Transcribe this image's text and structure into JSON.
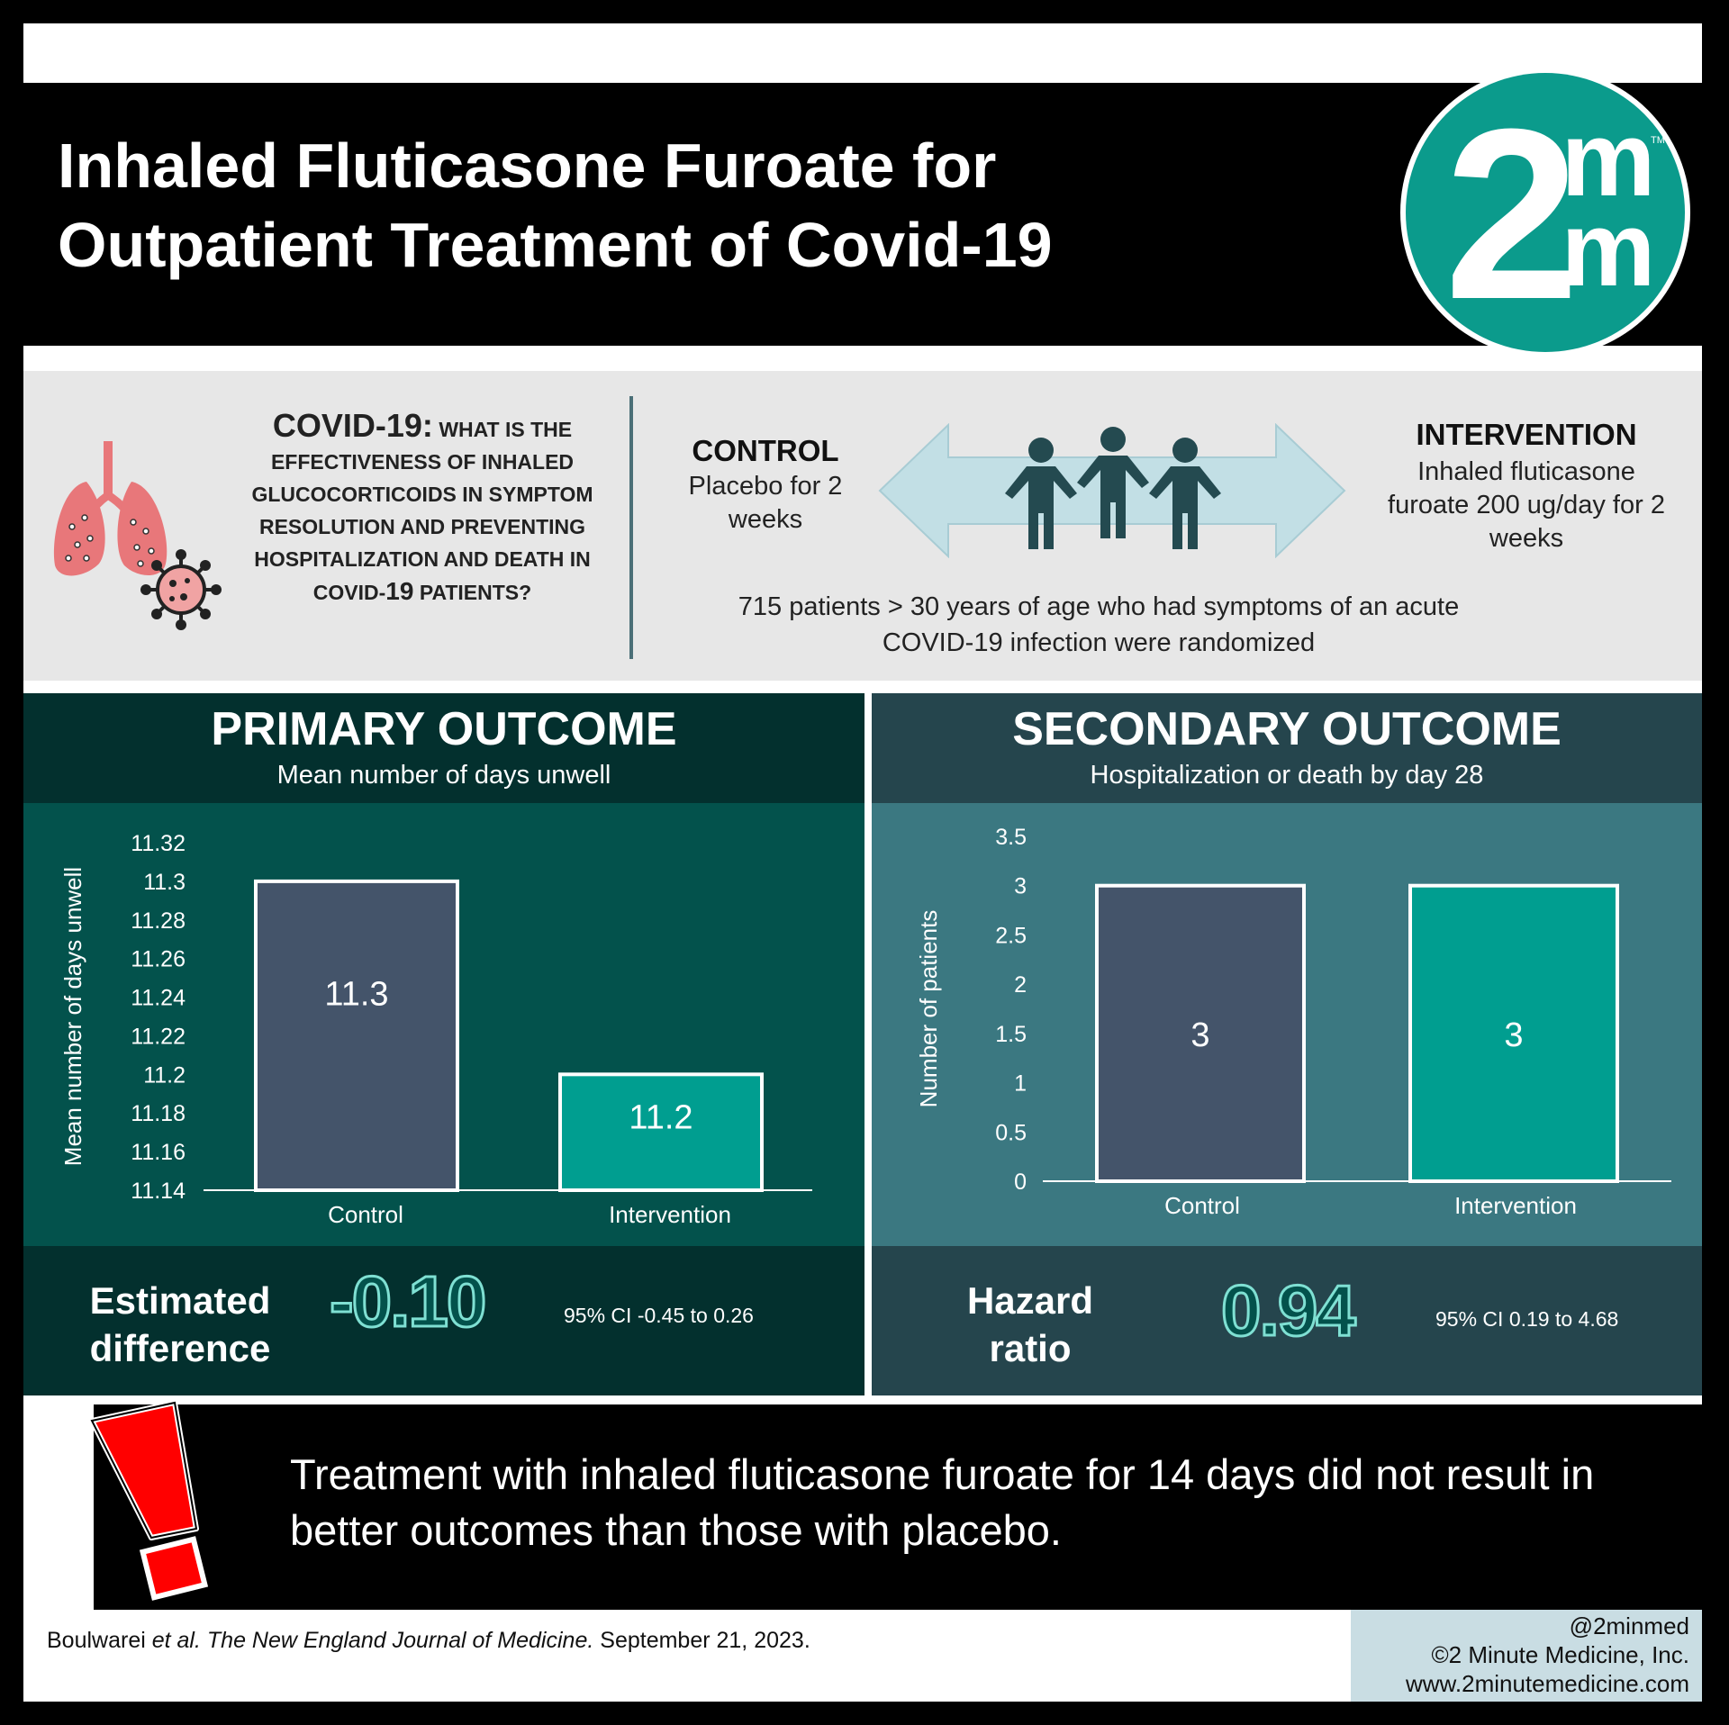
{
  "header": {
    "title": "Inhaled Fluticasone Furoate for\nOutpatient Treatment of Covid-19",
    "logo_top": "m",
    "logo_big": "2",
    "logo_bottom": "m",
    "logo_tm": "TM"
  },
  "study": {
    "question_lead": "COVID-19:",
    "question_line1": "WHAT IS THE",
    "question_rest": "EFFECTIVENESS OF INHALED GLUCOCORTICOIDS IN SYMPTOM RESOLUTION AND PREVENTING HOSPITALIZATION AND DEATH",
    "question_in": "IN COVID-",
    "question_19": "19",
    "question_end": "PATIENTS?",
    "control_heading": "CONTROL",
    "control_text": "Placebo for 2 weeks",
    "intervention_heading": "INTERVENTION",
    "intervention_text": "Inhaled fluticasone furoate 200 ug/day for 2 weeks",
    "patients_text": "715 patients > 30 years of age who had symptoms of an acute COVID-19 infection were randomized"
  },
  "primary": {
    "title": "PRIMARY OUTCOME",
    "subtitle": "Mean number of days unwell",
    "stat_label": "Estimated difference",
    "stat_value": "-0.10",
    "ci": "95% CI -0.45 to 0.26"
  },
  "secondary": {
    "title": "SECONDARY OUTCOME",
    "subtitle": "Hospitalization or death by day 28",
    "stat_label": "Hazard ratio",
    "stat_value": "0.94",
    "ci": "95% CI 0.19 to 4.68"
  },
  "chart_data": [
    {
      "type": "bar",
      "categories": [
        "Control",
        "Intervention"
      ],
      "values": [
        11.3,
        11.2
      ],
      "data_labels": [
        "11.3",
        "11.2"
      ],
      "colors": [
        "#44546a",
        "#009e90"
      ],
      "ylabel": "Mean number of days unwell",
      "xlabel": "",
      "ylim": [
        11.14,
        11.32
      ],
      "yticks": [
        "11.14",
        "11.16",
        "11.18",
        "11.2",
        "11.22",
        "11.24",
        "11.26",
        "11.28",
        "11.3",
        "11.32"
      ],
      "grid": false
    },
    {
      "type": "bar",
      "categories": [
        "Control",
        "Intervention"
      ],
      "values": [
        3,
        3
      ],
      "data_labels": [
        "3",
        "3"
      ],
      "colors": [
        "#44546a",
        "#009e90"
      ],
      "ylabel": "Number of patients",
      "xlabel": "",
      "ylim": [
        0,
        3.5
      ],
      "yticks": [
        "0",
        "0.5",
        "1",
        "1.5",
        "2",
        "2.5",
        "3",
        "3.5"
      ],
      "grid": false
    }
  ],
  "conclusion": "Treatment with inhaled fluticasone furoate for 14 days did not result in better outcomes than those with placebo.",
  "citation": {
    "authors": "Boulwarei",
    "etal": "et al.",
    "journal": "The New England Journal of Medicine.",
    "date": "September 21, 2023."
  },
  "brand": {
    "handle": "@2minmed",
    "copyright": "©2 Minute Medicine, Inc.",
    "url": "www.2minutemedicine.com"
  }
}
